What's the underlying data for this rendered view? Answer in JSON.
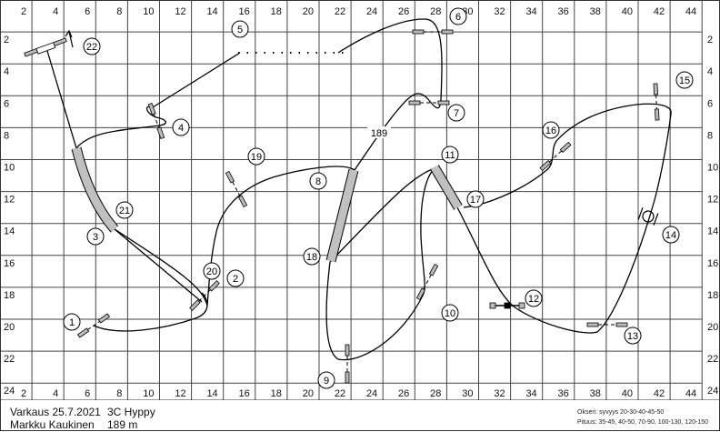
{
  "axis": {
    "x_ticks": [
      "2",
      "4",
      "6",
      "8",
      "10",
      "12",
      "14",
      "16",
      "18",
      "20",
      "22",
      "24",
      "26",
      "28",
      "30",
      "32",
      "34",
      "36",
      "38",
      "40",
      "42",
      "44"
    ],
    "y_ticks": [
      "2",
      "4",
      "6",
      "8",
      "10",
      "12",
      "14",
      "16",
      "18",
      "20",
      "22",
      "24"
    ]
  },
  "course": {
    "obstacle_numbers": [
      "1",
      "2",
      "3",
      "4",
      "5",
      "6",
      "7",
      "8",
      "9",
      "10",
      "11",
      "12",
      "13",
      "14",
      "15",
      "16",
      "17",
      "18",
      "19",
      "20",
      "21",
      "22"
    ],
    "length_marker": "189"
  },
  "footer": {
    "place_date": "Varkaus 25.7.2021",
    "judge": "Markku Kaukinen",
    "class": "3C Hyppy",
    "length": "189 m",
    "oxer_note": "Okseri: syvyys 20-30-40-45-50",
    "length_note": "Pituus: 35-45, 40-50, 70-90, 100-130, 120-150"
  },
  "colors": {
    "tunnel": "#c0c0c0",
    "line": "#000000",
    "grid": "#444444"
  }
}
